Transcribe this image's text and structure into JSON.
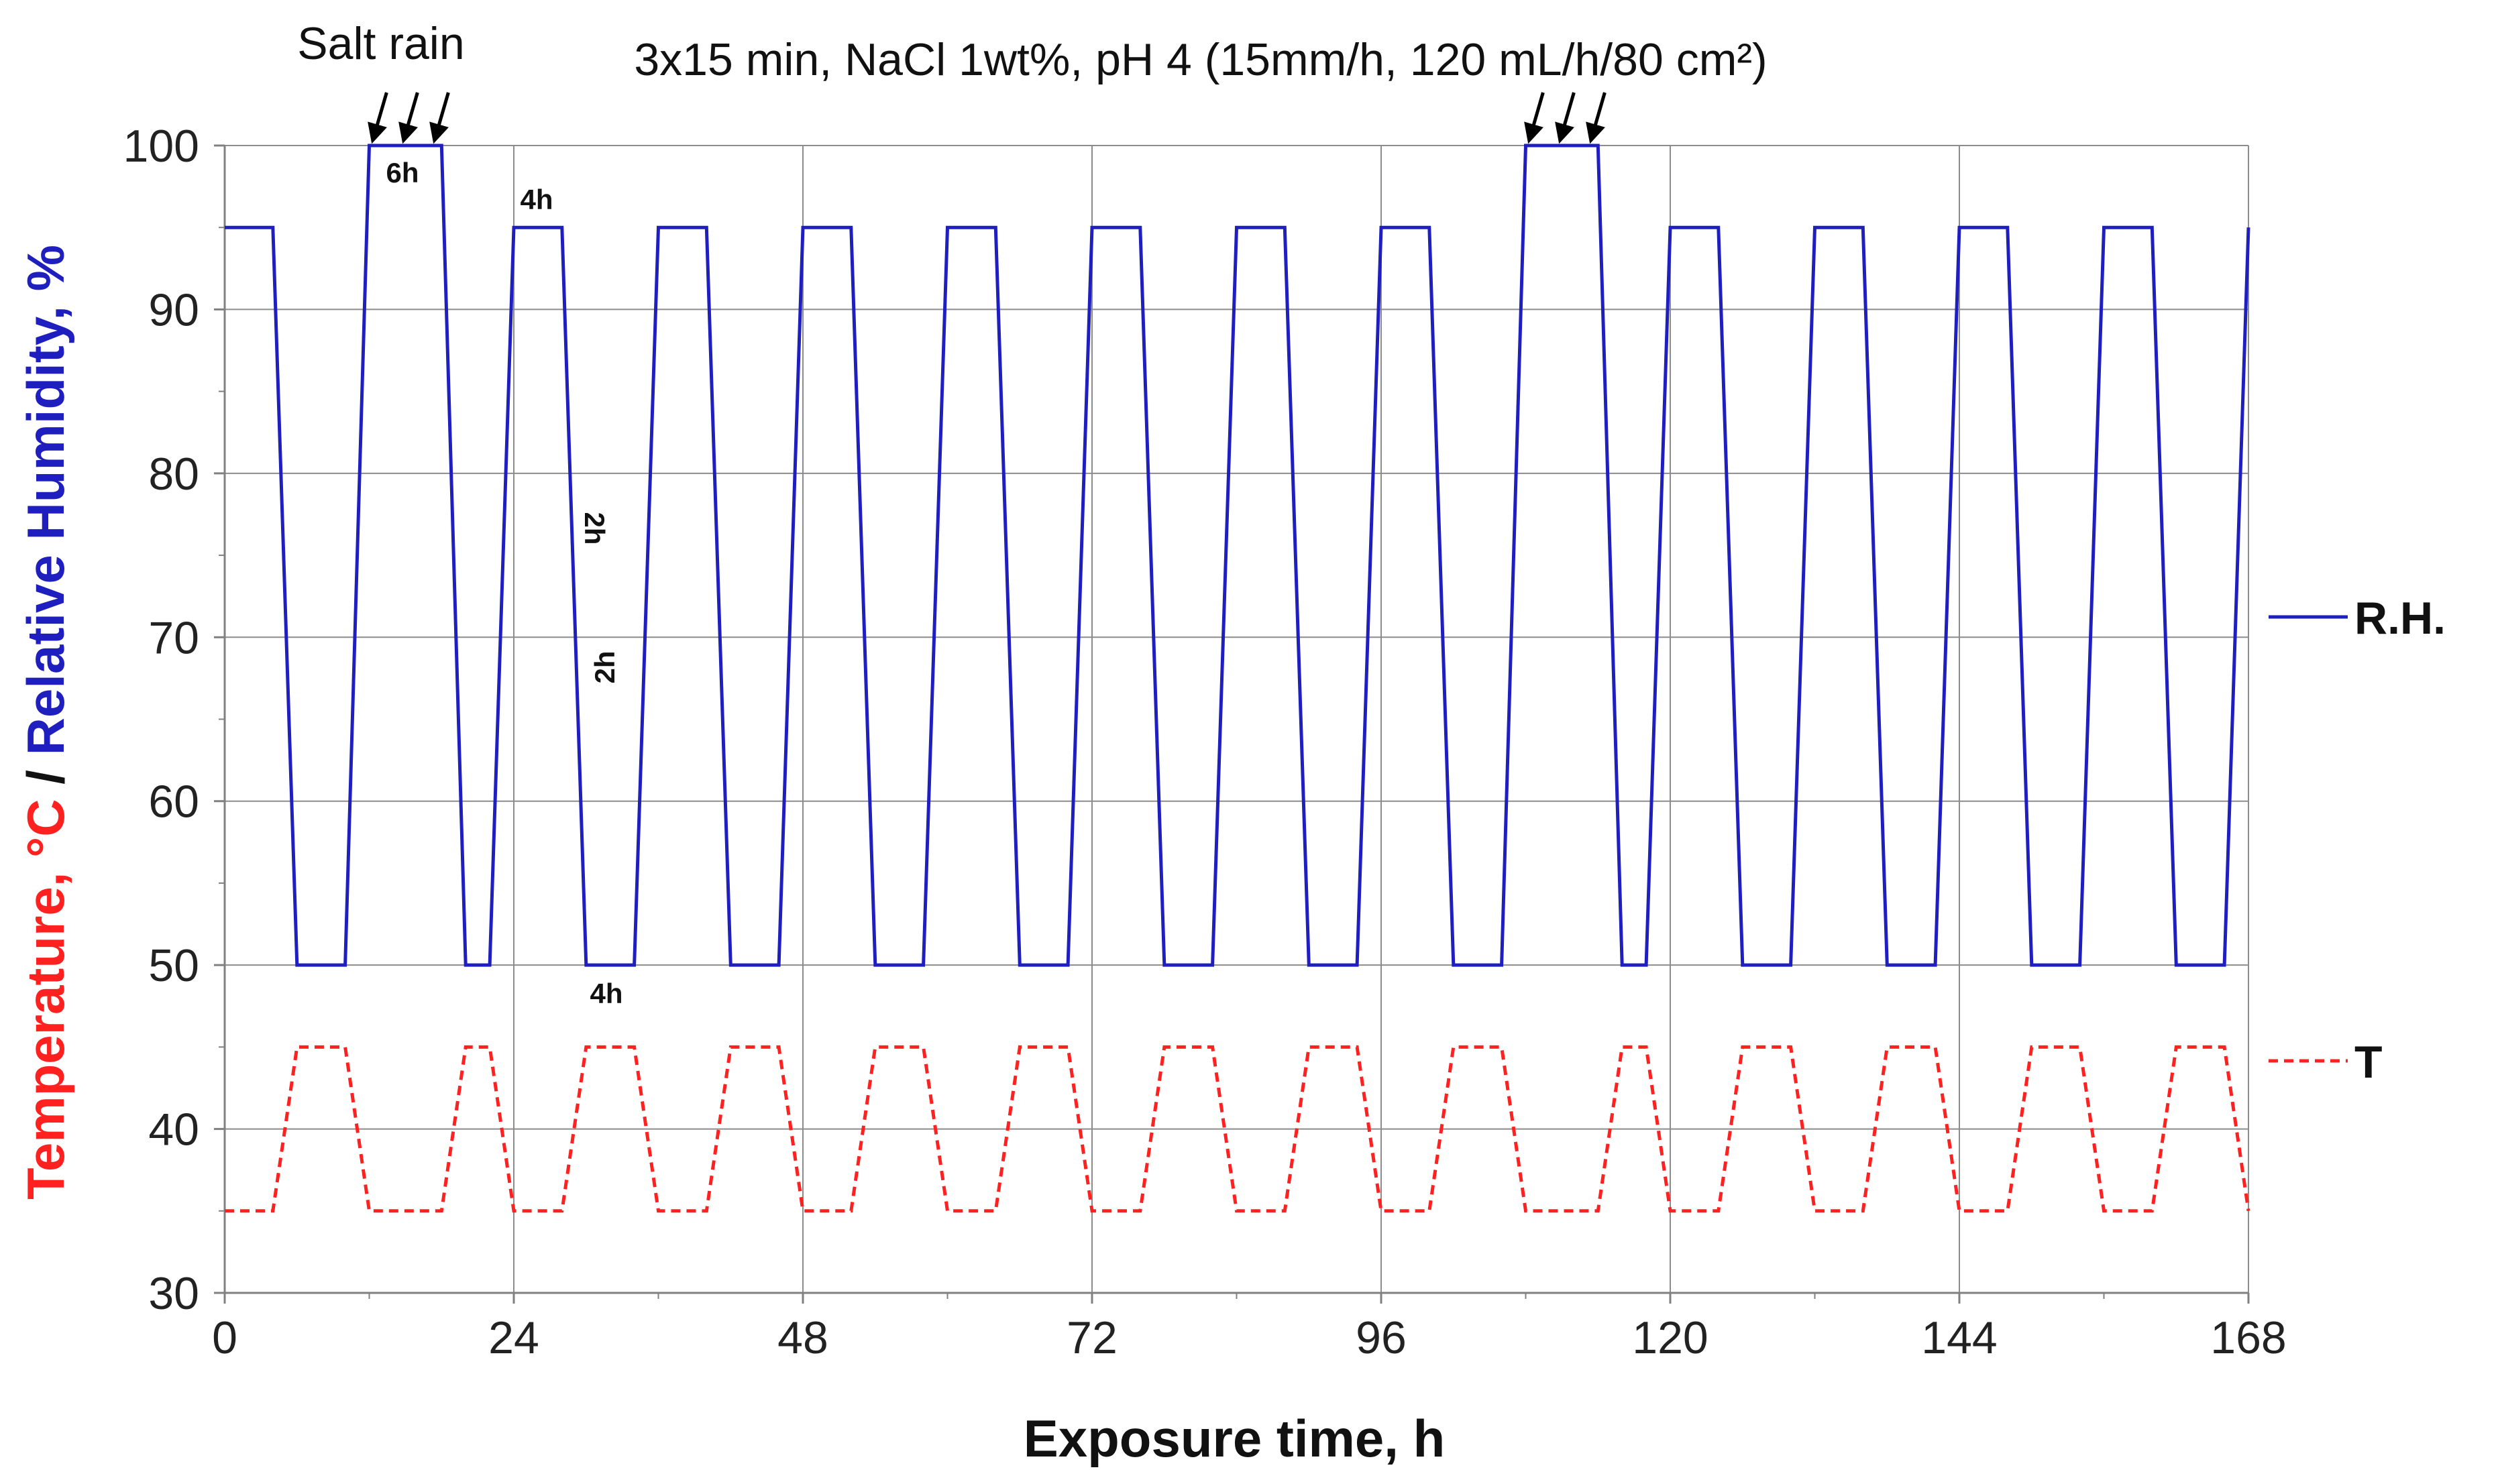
{
  "chart_data": {
    "type": "line",
    "xlabel": "Exposure time, h",
    "ylabel": {
      "part_temperature": "Temperature, °C",
      "separator": " / ",
      "part_humidity": "Relative Humidity, %"
    },
    "xlim": [
      0,
      168
    ],
    "ylim": [
      30,
      100
    ],
    "x_ticks": [
      0,
      24,
      48,
      72,
      96,
      120,
      144,
      168
    ],
    "y_ticks": [
      30,
      40,
      50,
      60,
      70,
      80,
      90,
      100
    ],
    "grid": true,
    "legend_placement": "right",
    "series": [
      {
        "name": "R.H.",
        "color": "#1f1fbf",
        "line_style": "solid",
        "x": [
          0,
          4,
          6,
          10,
          12,
          18,
          20,
          22,
          24,
          28,
          30,
          34,
          36,
          40,
          42,
          46,
          48,
          52,
          54,
          58,
          60,
          64,
          66,
          70,
          72,
          76,
          78,
          82,
          84,
          88,
          90,
          94,
          96,
          100,
          102,
          106,
          108,
          114,
          116,
          118,
          120,
          124,
          126,
          130,
          132,
          136,
          138,
          142,
          144,
          148,
          150,
          154,
          156,
          160,
          162,
          166,
          168
        ],
        "values": [
          95,
          95,
          50,
          50,
          100,
          100,
          50,
          50,
          95,
          95,
          50,
          50,
          95,
          95,
          50,
          50,
          95,
          95,
          50,
          50,
          95,
          95,
          50,
          50,
          95,
          95,
          50,
          50,
          95,
          95,
          50,
          50,
          95,
          95,
          50,
          50,
          100,
          100,
          50,
          50,
          95,
          95,
          50,
          50,
          95,
          95,
          50,
          50,
          95,
          95,
          50,
          50,
          95,
          95,
          50,
          50,
          95
        ]
      },
      {
        "name": "T",
        "color": "#ff2020",
        "line_style": "dashed",
        "x": [
          0,
          4,
          6,
          10,
          12,
          18,
          20,
          22,
          24,
          28,
          30,
          34,
          36,
          40,
          42,
          46,
          48,
          52,
          54,
          58,
          60,
          64,
          66,
          70,
          72,
          76,
          78,
          82,
          84,
          88,
          90,
          94,
          96,
          100,
          102,
          106,
          108,
          114,
          116,
          118,
          120,
          124,
          126,
          130,
          132,
          136,
          138,
          142,
          144,
          148,
          150,
          154,
          156,
          160,
          162,
          166,
          168
        ],
        "values": [
          35,
          35,
          45,
          45,
          35,
          35,
          45,
          45,
          35,
          35,
          45,
          45,
          35,
          35,
          45,
          45,
          35,
          35,
          45,
          45,
          35,
          35,
          45,
          45,
          35,
          35,
          45,
          45,
          35,
          35,
          45,
          45,
          35,
          35,
          45,
          45,
          35,
          35,
          45,
          45,
          35,
          35,
          45,
          45,
          35,
          35,
          45,
          45,
          35,
          35,
          45,
          45,
          35,
          35,
          45,
          45,
          35
        ]
      }
    ],
    "annotations": {
      "salt_rain": "Salt rain",
      "conditions": "3x15 min, NaCl 1wt%, pH 4 (15mm/h, 120 mL/h/80 cm²)",
      "label_6h": "6h",
      "label_4h_top": "4h",
      "label_4h_bottom": "4h",
      "label_2h_down": "2h",
      "label_2h_up": "2h",
      "salt_rain_events_h": [
        12,
        108
      ]
    }
  }
}
